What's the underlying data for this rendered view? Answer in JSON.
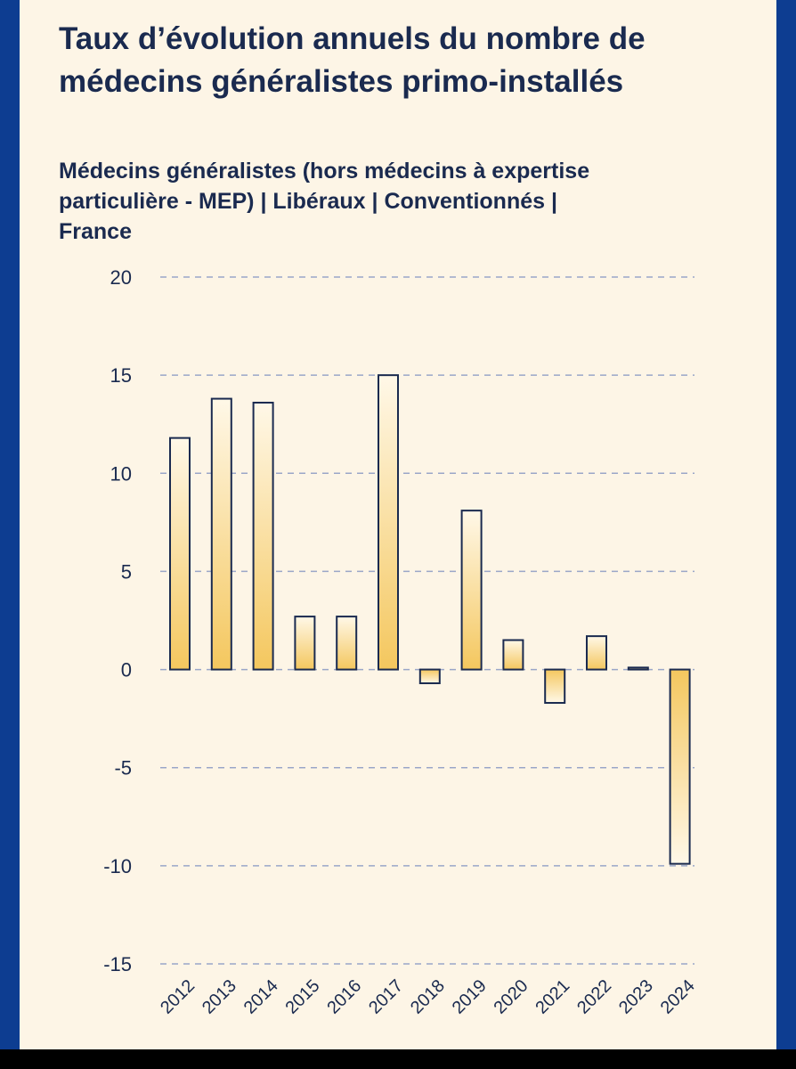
{
  "chart_data": {
    "type": "bar",
    "title": "Taux d’évolution annuels du nombre de médecins généralistes primo-installés",
    "subtitle": "Médecins généralistes (hors médecins à expertise particulière - MEP) | Libéraux | Conventionnés | France",
    "categories": [
      "2012",
      "2013",
      "2014",
      "2015",
      "2016",
      "2017",
      "2018",
      "2019",
      "2020",
      "2021",
      "2022",
      "2023",
      "2024"
    ],
    "values": [
      11.8,
      13.8,
      13.6,
      2.7,
      2.7,
      15.0,
      -0.7,
      8.1,
      1.5,
      -1.7,
      1.7,
      0.1,
      -9.9
    ],
    "ylim": [
      -15,
      20
    ],
    "yticks": [
      20,
      15,
      10,
      5,
      0,
      -5,
      -10,
      -15
    ],
    "ytick_labels": [
      "20",
      "15",
      "10",
      "5",
      "0",
      "-5",
      "-10",
      "-15"
    ],
    "xlabel": "",
    "ylabel": "",
    "grid": true,
    "colors": {
      "bar_fill_strong": "#f4c75e",
      "bar_fill_light": "#fff8e8",
      "bar_stroke": "#1a2a4f",
      "grid": "#9aa6c8",
      "text": "#1a2a4f"
    }
  }
}
